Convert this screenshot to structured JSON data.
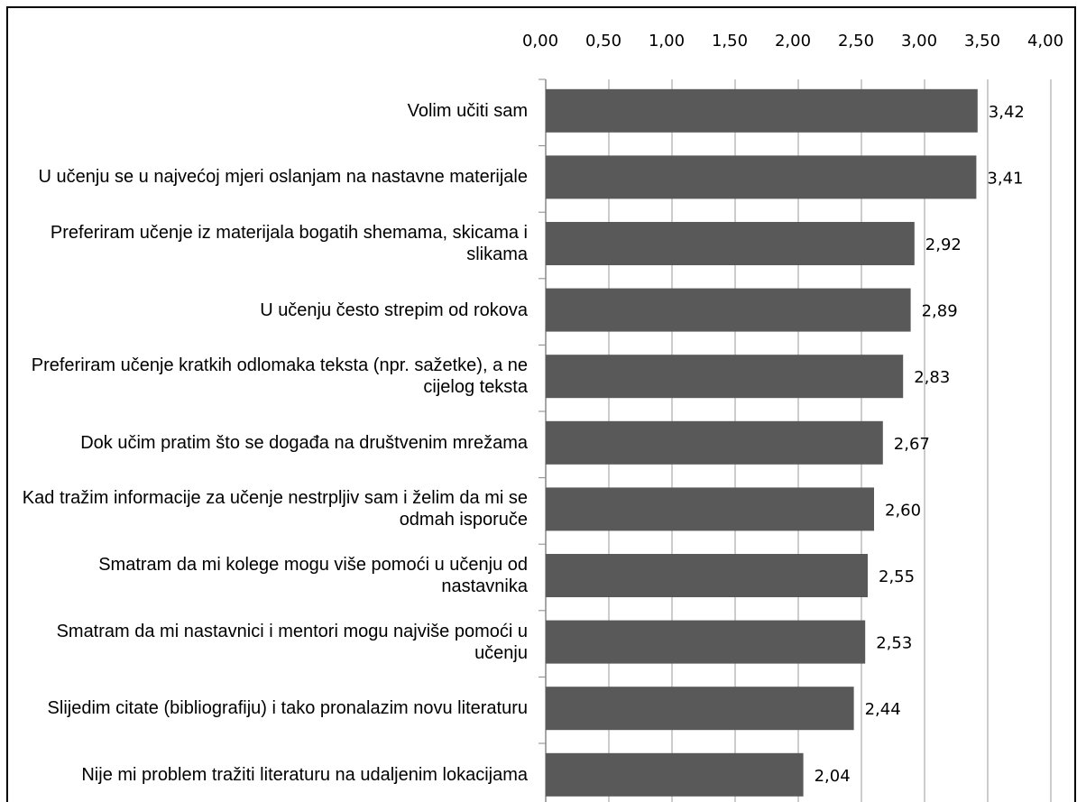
{
  "chart_data": {
    "type": "bar",
    "orientation": "horizontal",
    "categories": [
      "Volim učiti sam",
      "U učenju se u najvećoj mjeri oslanjam na nastavne materijale",
      "Preferiram učenje iz materijala bogatih shemama, skicama i slikama",
      "U učenju često strepim od rokova",
      "Preferiram učenje kratkih odlomaka teksta (npr. sažetke), a ne cijelog teksta",
      "Dok učim pratim što se događa na društvenim mrežama",
      "Kad tražim informacije za učenje nestrpljiv sam i želim da mi se odmah isporuče",
      "Smatram da mi kolege mogu više pomoći u učenju od nastavnika",
      "Smatram da mi nastavnici i mentori mogu najviše pomoći u učenju",
      "Slijedim citate (bibliografiju) i tako pronalazim novu literaturu",
      "Nije mi problem tražiti literaturu na udaljenim lokacijama"
    ],
    "values": [
      3.42,
      3.41,
      2.92,
      2.89,
      2.83,
      2.67,
      2.6,
      2.55,
      2.53,
      2.44,
      2.04
    ],
    "value_labels": [
      "3,42",
      "3,41",
      "2,92",
      "2,89",
      "2,83",
      "2,67",
      "2,60",
      "2,55",
      "2,53",
      "2,44",
      "2,04"
    ],
    "color": "#595959",
    "xlim": [
      0,
      4
    ],
    "xticks": [
      {
        "value": 0,
        "label": "0,00"
      },
      {
        "value": 0.5,
        "label": "0,50"
      },
      {
        "value": 1,
        "label": "1,00"
      },
      {
        "value": 1.5,
        "label": "1,50"
      },
      {
        "value": 2,
        "label": "2,00"
      },
      {
        "value": 2.5,
        "label": "2,50"
      },
      {
        "value": 3,
        "label": "3,00"
      },
      {
        "value": 3.5,
        "label": "3,50"
      },
      {
        "value": 4,
        "label": "4,00"
      }
    ],
    "grid": true
  }
}
